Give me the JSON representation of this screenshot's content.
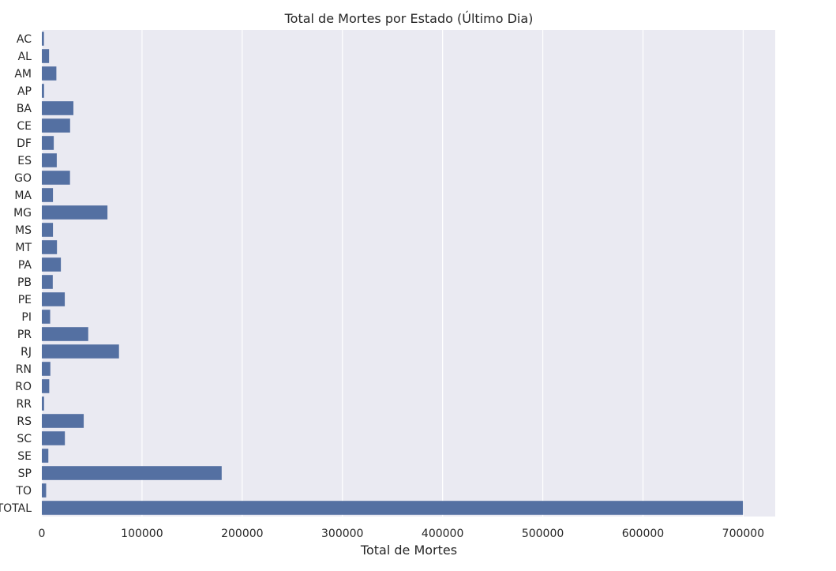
{
  "chart_data": {
    "type": "bar",
    "orientation": "horizontal",
    "title": "Total de Mortes por Estado (Último Dia)",
    "xlabel": "Total de Mortes",
    "ylabel": "",
    "categories": [
      "AC",
      "AL",
      "AM",
      "AP",
      "BA",
      "CE",
      "DF",
      "ES",
      "GO",
      "MA",
      "MG",
      "MS",
      "MT",
      "PA",
      "PB",
      "PE",
      "PI",
      "PR",
      "RJ",
      "RN",
      "RO",
      "RR",
      "RS",
      "SC",
      "SE",
      "SP",
      "TO",
      "TOTAL"
    ],
    "values": [
      2100,
      7200,
      14500,
      2200,
      31500,
      28200,
      11900,
      14900,
      28100,
      11100,
      65500,
      11100,
      15100,
      19000,
      10900,
      22900,
      8300,
      46300,
      77000,
      8500,
      7400,
      2200,
      41800,
      23000,
      6500,
      179500,
      4300,
      699800
    ],
    "xlim": [
      0,
      732000
    ],
    "xticks": [
      0,
      100000,
      200000,
      300000,
      400000,
      500000,
      600000,
      700000
    ],
    "xtick_labels": [
      "0",
      "100000",
      "200000",
      "300000",
      "400000",
      "500000",
      "600000",
      "700000"
    ],
    "grid": true,
    "colors": {
      "bar": "#5470a2",
      "plot_background": "#eaeaf2",
      "grid": "#ffffff",
      "text": "#262626"
    }
  }
}
